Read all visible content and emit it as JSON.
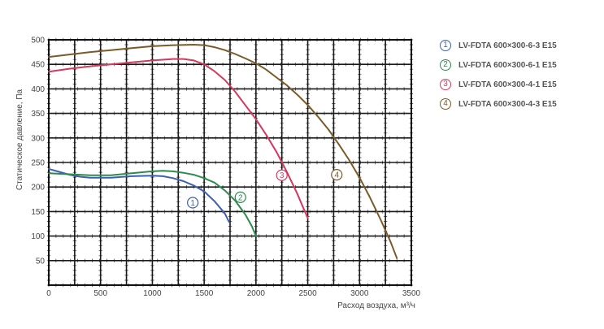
{
  "chart_data": {
    "type": "line",
    "xlabel": "Расход воздуха, м³/ч",
    "ylabel": "Статическое давление, Па",
    "xlim": [
      0,
      3500
    ],
    "ylim": [
      0,
      500
    ],
    "x_ticks": [
      0,
      500,
      1000,
      1500,
      2000,
      2500,
      3000,
      3500
    ],
    "y_ticks": [
      50,
      100,
      150,
      200,
      250,
      300,
      350,
      400,
      450,
      500
    ],
    "grid": true,
    "minor_ticks": true,
    "legend_position": "right",
    "series": [
      {
        "marker": "1",
        "name": "LV-FDTA 600×300-6-3 E15",
        "color": "#3d5fb0",
        "points": [
          [
            0,
            237
          ],
          [
            100,
            231
          ],
          [
            200,
            225
          ],
          [
            300,
            221
          ],
          [
            400,
            219
          ],
          [
            600,
            219
          ],
          [
            800,
            222
          ],
          [
            1000,
            223
          ],
          [
            1100,
            222
          ],
          [
            1200,
            218
          ],
          [
            1300,
            212
          ],
          [
            1400,
            203
          ],
          [
            1500,
            191
          ],
          [
            1600,
            171
          ],
          [
            1700,
            146
          ],
          [
            1740,
            129
          ]
        ],
        "label_at": [
          1390,
          168
        ]
      },
      {
        "marker": "2",
        "name": "LV-FDTA 600×300-6-1 E15",
        "color": "#2d8b4e",
        "points": [
          [
            0,
            228
          ],
          [
            200,
            226
          ],
          [
            400,
            224
          ],
          [
            600,
            224
          ],
          [
            800,
            228
          ],
          [
            1000,
            232
          ],
          [
            1100,
            233
          ],
          [
            1200,
            232
          ],
          [
            1300,
            229
          ],
          [
            1400,
            225
          ],
          [
            1500,
            218
          ],
          [
            1600,
            209
          ],
          [
            1700,
            193
          ],
          [
            1800,
            172
          ],
          [
            1900,
            143
          ],
          [
            1960,
            120
          ],
          [
            2000,
            100
          ]
        ],
        "label_at": [
          1850,
          179
        ]
      },
      {
        "marker": "3",
        "name": "LV-FDTA 600×300-4-1 E15",
        "color": "#d23a5e",
        "points": [
          [
            0,
            435
          ],
          [
            200,
            441
          ],
          [
            400,
            446
          ],
          [
            600,
            450
          ],
          [
            800,
            454
          ],
          [
            1000,
            458
          ],
          [
            1200,
            461
          ],
          [
            1300,
            461
          ],
          [
            1400,
            458
          ],
          [
            1500,
            450
          ],
          [
            1600,
            436
          ],
          [
            1700,
            418
          ],
          [
            1800,
            394
          ],
          [
            1900,
            366
          ],
          [
            2000,
            338
          ],
          [
            2100,
            306
          ],
          [
            2200,
            271
          ],
          [
            2300,
            230
          ],
          [
            2400,
            186
          ],
          [
            2450,
            161
          ],
          [
            2500,
            137
          ]
        ],
        "label_at": [
          2250,
          224
        ]
      },
      {
        "marker": "4",
        "name": "LV-FDTA 600×300-4-3 E15",
        "color": "#7a5a2a",
        "points": [
          [
            0,
            465
          ],
          [
            200,
            470
          ],
          [
            400,
            475
          ],
          [
            600,
            479
          ],
          [
            800,
            483
          ],
          [
            1000,
            487
          ],
          [
            1200,
            489
          ],
          [
            1400,
            490
          ],
          [
            1500,
            489
          ],
          [
            1600,
            485
          ],
          [
            1700,
            479
          ],
          [
            1800,
            471
          ],
          [
            1900,
            462
          ],
          [
            2000,
            452
          ],
          [
            2100,
            439
          ],
          [
            2200,
            423
          ],
          [
            2300,
            407
          ],
          [
            2400,
            388
          ],
          [
            2500,
            367
          ],
          [
            2600,
            343
          ],
          [
            2700,
            317
          ],
          [
            2800,
            287
          ],
          [
            2900,
            255
          ],
          [
            3000,
            219
          ],
          [
            3100,
            179
          ],
          [
            3200,
            135
          ],
          [
            3300,
            88
          ],
          [
            3360,
            55
          ]
        ],
        "label_at": [
          2780,
          225
        ]
      }
    ]
  }
}
